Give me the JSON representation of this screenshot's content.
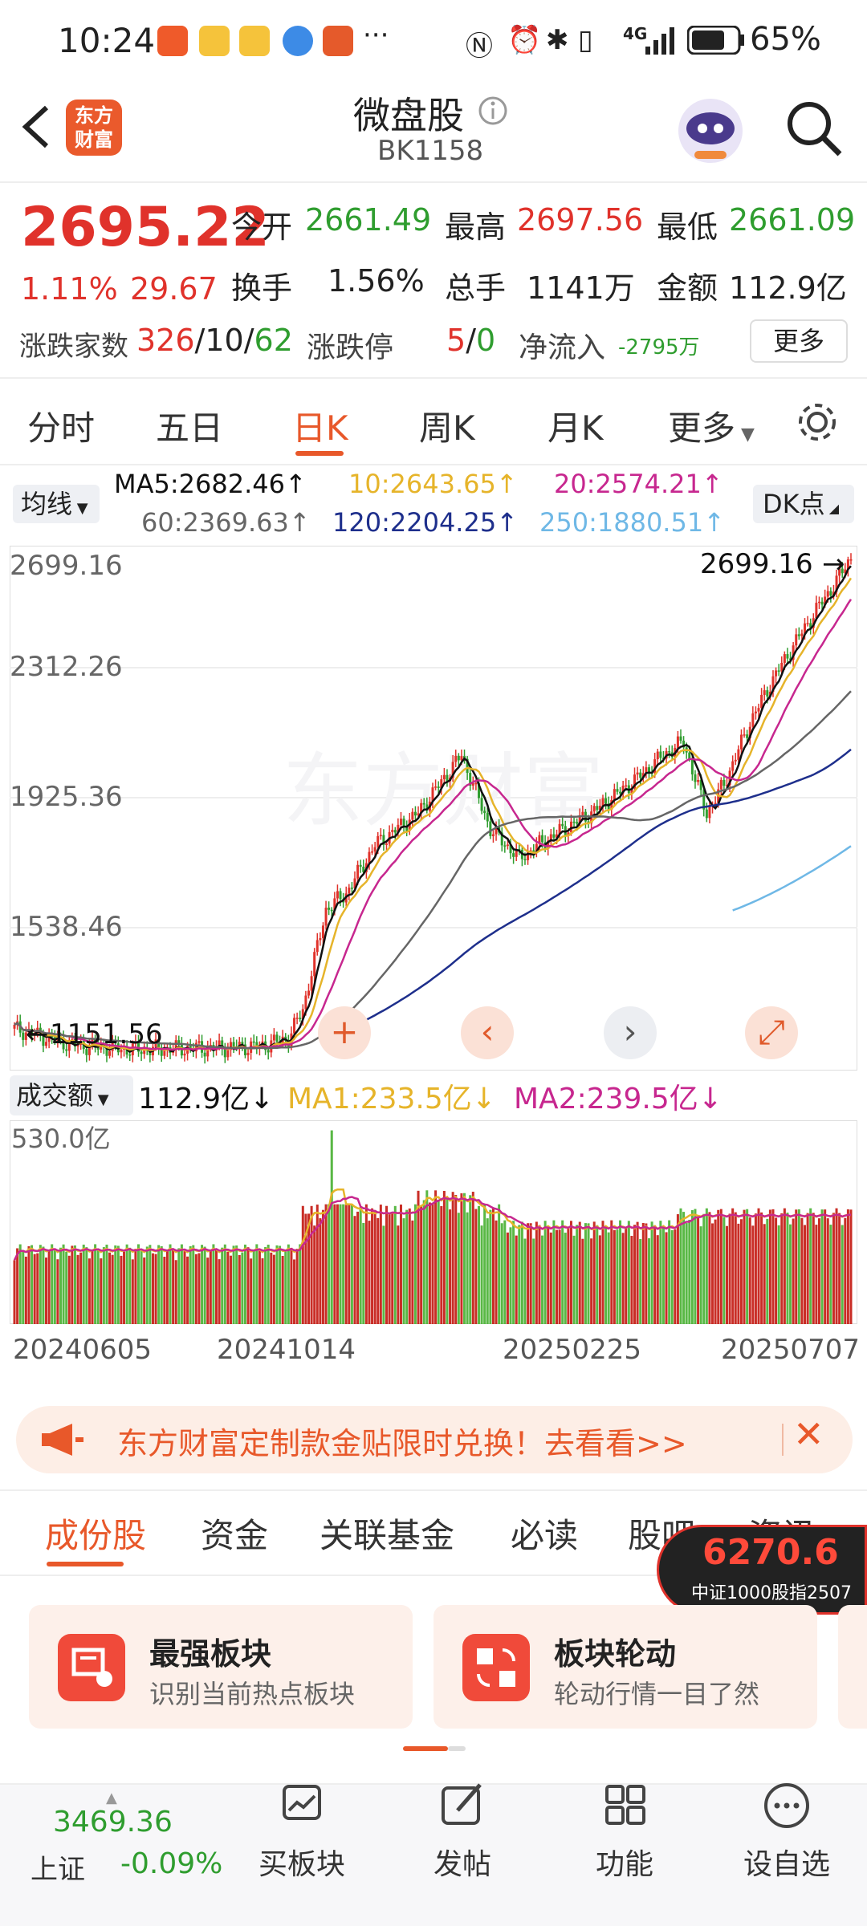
{
  "status": {
    "time": "10:24",
    "more": "···",
    "battery": "65%",
    "net": "4G"
  },
  "header": {
    "title": "微盘股",
    "code": "BK1158",
    "logo_line1": "东方",
    "logo_line2": "财富"
  },
  "quote": {
    "price": "2695.22",
    "pct": "1.11%",
    "chg": "29.67",
    "open_label": "今开",
    "open": "2661.49",
    "high_label": "最高",
    "high": "2697.56",
    "low_label": "最低",
    "low": "2661.09",
    "turn_label": "换手",
    "turn": "1.56%",
    "vol_label": "总手",
    "vol": "1141万",
    "amt_label": "金额",
    "amt": "112.9亿",
    "adv_label": "涨跌家数",
    "adv_up": "326",
    "adv_flat": "10",
    "adv_down": "62",
    "sep": "/",
    "limit_label": "涨跌停",
    "limit_up": "5",
    "limit_down": "0",
    "flow_label": "净流入",
    "flow": "-2795万",
    "more_btn": "更多"
  },
  "tabs": [
    "分时",
    "五日",
    "日K",
    "周K",
    "月K",
    "更多"
  ],
  "ma": {
    "sel": "均线",
    "ma5": "MA5:2682.46↑",
    "ma10": "10:2643.65↑",
    "ma20": "20:2574.21↑",
    "ma60": "60:2369.63↑",
    "ma120": "120:2204.25↑",
    "ma250": "250:1880.51↑",
    "dk": "DK点"
  },
  "kchart": {
    "y_ticks": [
      "2699.16",
      "2312.26",
      "1925.36",
      "1538.46",
      "1151.56"
    ],
    "max_label": "2699.16",
    "min_label": "1151.56"
  },
  "volchart": {
    "sel": "成交额",
    "cur": "112.9亿↓",
    "ma1": "MA1:233.5亿↓",
    "ma2": "MA2:239.5亿↓",
    "top": "530.0亿",
    "dates": [
      "20240605",
      "20241014",
      "20250225",
      "20250707"
    ]
  },
  "banner": {
    "text": "东方财富定制款金贴限时兑换！去看看>>"
  },
  "subtabs": [
    "成份股",
    "资金",
    "关联基金",
    "必读",
    "股吧",
    "资讯"
  ],
  "float": {
    "value": "6270.6",
    "label": "中证1000股指2507"
  },
  "cards": [
    {
      "title": "最强板块",
      "sub": "识别当前热点板块"
    },
    {
      "title": "板块轮动",
      "sub": "轮动行情一目了然"
    }
  ],
  "bottom": {
    "index_value": "3469.36",
    "index_name": "上证",
    "index_pct": "-0.09%",
    "items": [
      "买板块",
      "发帖",
      "功能",
      "设自选"
    ]
  },
  "colors": {
    "red": "#e0322b",
    "green": "#2f9d2f",
    "ma5": "#111111",
    "ma10": "#e6b42a",
    "ma20": "#c7278f",
    "ma60": "#666666",
    "ma120": "#1e2f8c",
    "ma250": "#6fb8e6"
  }
}
